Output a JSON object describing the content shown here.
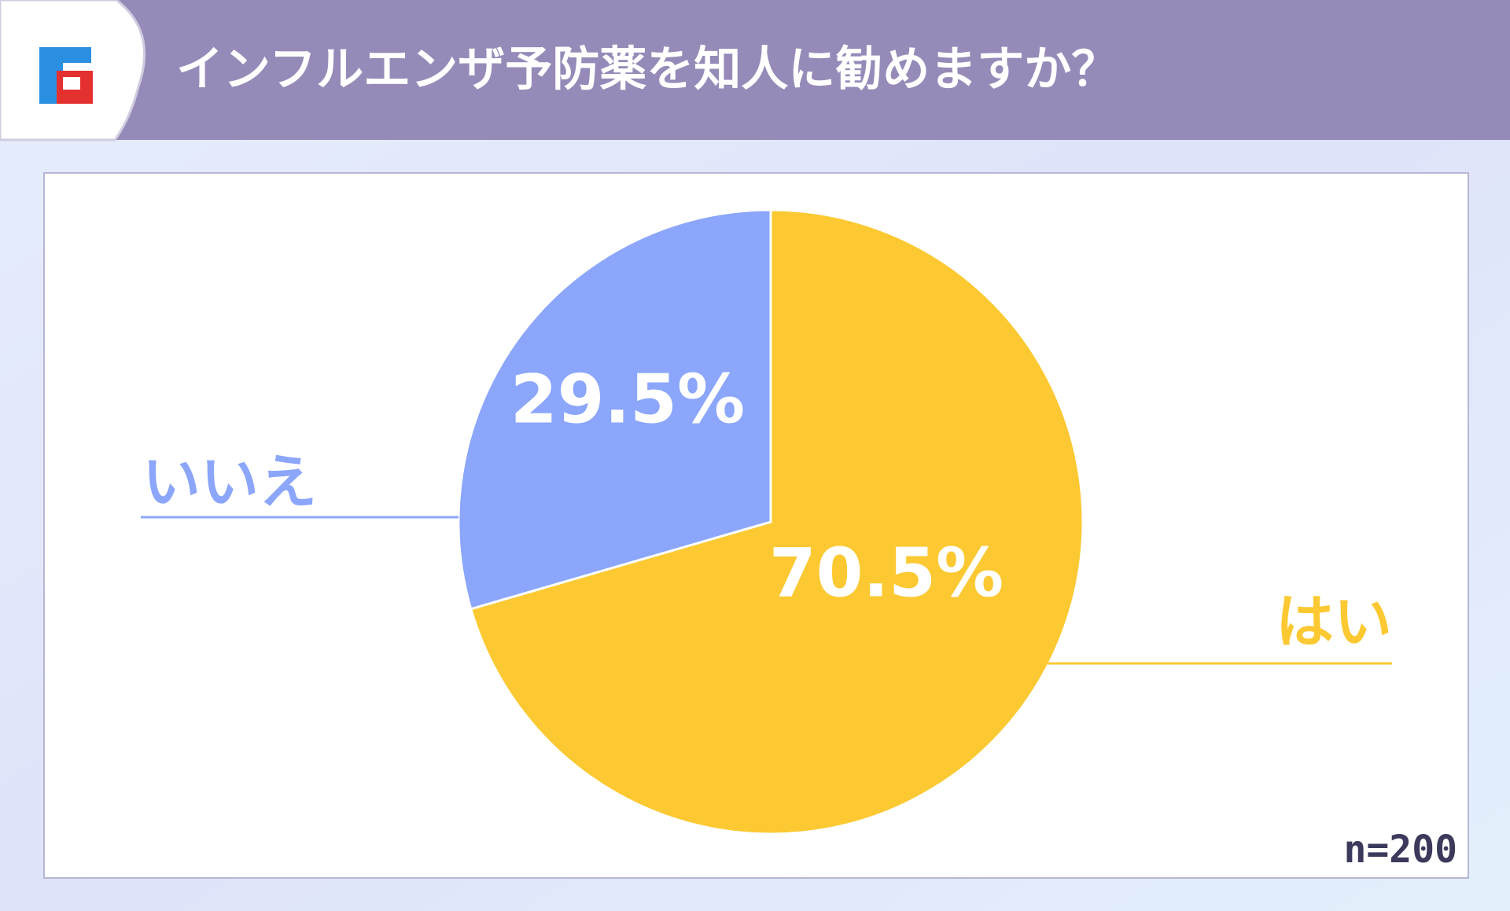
{
  "chart_data": {
    "type": "pie",
    "title": "インフルエンザ予防薬を知人に勧めますか？",
    "categories": [
      "はい",
      "いいえ"
    ],
    "values": [
      70.5,
      29.5
    ],
    "value_labels": [
      "70.5%",
      "29.5%"
    ],
    "colors": [
      "#fcc933",
      "#8ba6fb"
    ],
    "note": "n=200"
  }
}
